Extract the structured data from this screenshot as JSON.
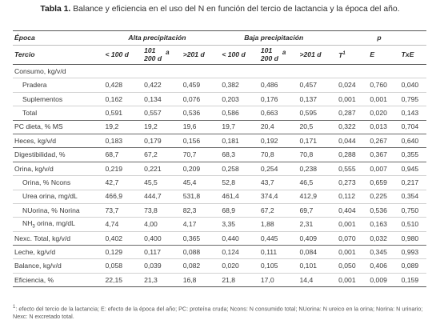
{
  "caption": {
    "label": "Tabla 1.",
    "text": "Balance y eficiencia en el uso del N en función del tercio de lactancia y la época del año."
  },
  "header": {
    "epoca": "Época",
    "alta": "Alta precipitación",
    "baja": "Baja precipitación",
    "p": "p",
    "tercio": "Tercio",
    "t1": "< 100 d",
    "t2_top": "101",
    "t2_bottom": "200 d",
    "t2_suffix": "a",
    "t3": ">201 d",
    "pT": "T",
    "pT_sup": "1",
    "pE": "E",
    "pTxE": "TxE"
  },
  "rows": [
    {
      "label": "Consumo, kg/v/d",
      "indent": false,
      "values": [
        "",
        "",
        "",
        "",
        "",
        "",
        "",
        "",
        ""
      ]
    },
    {
      "label": "Pradera",
      "indent": true,
      "values": [
        "0,428",
        "0,422",
        "0,459",
        "0,382",
        "0,486",
        "0,457",
        "0,024",
        "0,760",
        "0,040"
      ]
    },
    {
      "label": "Suplementos",
      "indent": true,
      "values": [
        "0,162",
        "0,134",
        "0,076",
        "0,203",
        "0,176",
        "0,137",
        "0,001",
        "0,001",
        "0,795"
      ]
    },
    {
      "label": "Total",
      "indent": true,
      "values": [
        "0,591",
        "0,557",
        "0,536",
        "0,586",
        "0,663",
        "0,595",
        "0,287",
        "0,020",
        "0,143"
      ]
    },
    {
      "label": "PC dieta, % MS",
      "indent": false,
      "values": [
        "19,2",
        "19,2",
        "19,6",
        "19,7",
        "20,4",
        "20,5",
        "0,322",
        "0,013",
        "0,704"
      ]
    },
    {
      "label": "Heces, kg/v/d",
      "indent": false,
      "values": [
        "0,183",
        "0,179",
        "0,156",
        "0,181",
        "0,192",
        "0,171",
        "0,044",
        "0,267",
        "0,640"
      ]
    },
    {
      "label": "Digestibilidad, %",
      "indent": false,
      "values": [
        "68,7",
        "67,2",
        "70,7",
        "68,3",
        "70,8",
        "70,8",
        "0,288",
        "0,367",
        "0,355"
      ]
    },
    {
      "label": "Orina, kg/v/d",
      "indent": false,
      "values": [
        "0,219",
        "0,221",
        "0,209",
        "0,258",
        "0,254",
        "0,238",
        "0,555",
        "0,007",
        "0,945"
      ]
    },
    {
      "label": "Orina, % Ncons",
      "indent": true,
      "values": [
        "42,7",
        "45,5",
        "45,4",
        "52,8",
        "43,7",
        "46,5",
        "0,273",
        "0,659",
        "0,217"
      ]
    },
    {
      "label": "Urea orina, mg/dL",
      "indent": true,
      "values": [
        "466,9",
        "444,7",
        "531,8",
        "461,4",
        "374,4",
        "412,9",
        "0,112",
        "0,225",
        "0,354"
      ]
    },
    {
      "label": "NUorina, % Norina",
      "indent": true,
      "values": [
        "73,7",
        "73,8",
        "82,3",
        "68,9",
        "67,2",
        "69,7",
        "0,404",
        "0,536",
        "0,750"
      ]
    },
    {
      "label": "NH3 orina, mg/dL",
      "indent": true,
      "values": [
        "4,74",
        "4,00",
        "4,17",
        "3,35",
        "1,88",
        "2,31",
        "0,001",
        "0,163",
        "0,510"
      ]
    },
    {
      "label": "Nexc. Total, kg/v/d",
      "indent": false,
      "values": [
        "0,402",
        "0,400",
        "0,365",
        "0,440",
        "0,445",
        "0,409",
        "0,070",
        "0,032",
        "0,980"
      ]
    },
    {
      "label": "Leche, kg/v/d",
      "indent": false,
      "values": [
        "0,129",
        "0,117",
        "0,088",
        "0,124",
        "0,111",
        "0,084",
        "0,001",
        "0,345",
        "0,993"
      ]
    },
    {
      "label": "Balance, kg/v/d",
      "indent": false,
      "values": [
        "0,058",
        "0,039",
        "0,082",
        "0,020",
        "0,105",
        "0,101",
        "0,050",
        "0,406",
        "0,089"
      ]
    },
    {
      "label": "Eficiencia, %",
      "indent": false,
      "values": [
        "22,15",
        "21,3",
        "16,8",
        "21,8",
        "17,0",
        "14,4",
        "0,001",
        "0,009",
        "0,159"
      ]
    }
  ],
  "footnote": {
    "sup": "1",
    "text": ": efecto del tercio de la lactancia; E: efecto de la época del año; PC: proteína cruda; Ncons: N consumido total; NUorina: N ureico en la orina; Norina: N urinario; Nexc: N excretado total."
  }
}
